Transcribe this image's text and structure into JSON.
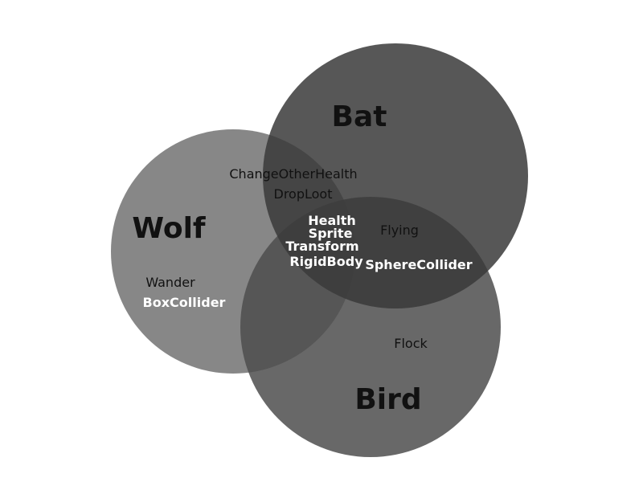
{
  "sets": {
    "bat": {
      "title": "Bat",
      "color": "#4a4a4a"
    },
    "wolf": {
      "title": "Wolf",
      "color": "#7a7a7a"
    },
    "bird": {
      "title": "Bird",
      "color": "#5a5a5a"
    }
  },
  "regions": {
    "wolf_bat": [
      "ChangeOtherHealth",
      "DropLoot"
    ],
    "all_three": [
      "Health",
      "Sprite",
      "Transform",
      "RigidBody"
    ],
    "bat_bird": [
      "Flying",
      "SphereCollider"
    ],
    "wolf_only": [
      "Wander",
      "BoxCollider"
    ],
    "bird_only": [
      "Flock"
    ]
  }
}
